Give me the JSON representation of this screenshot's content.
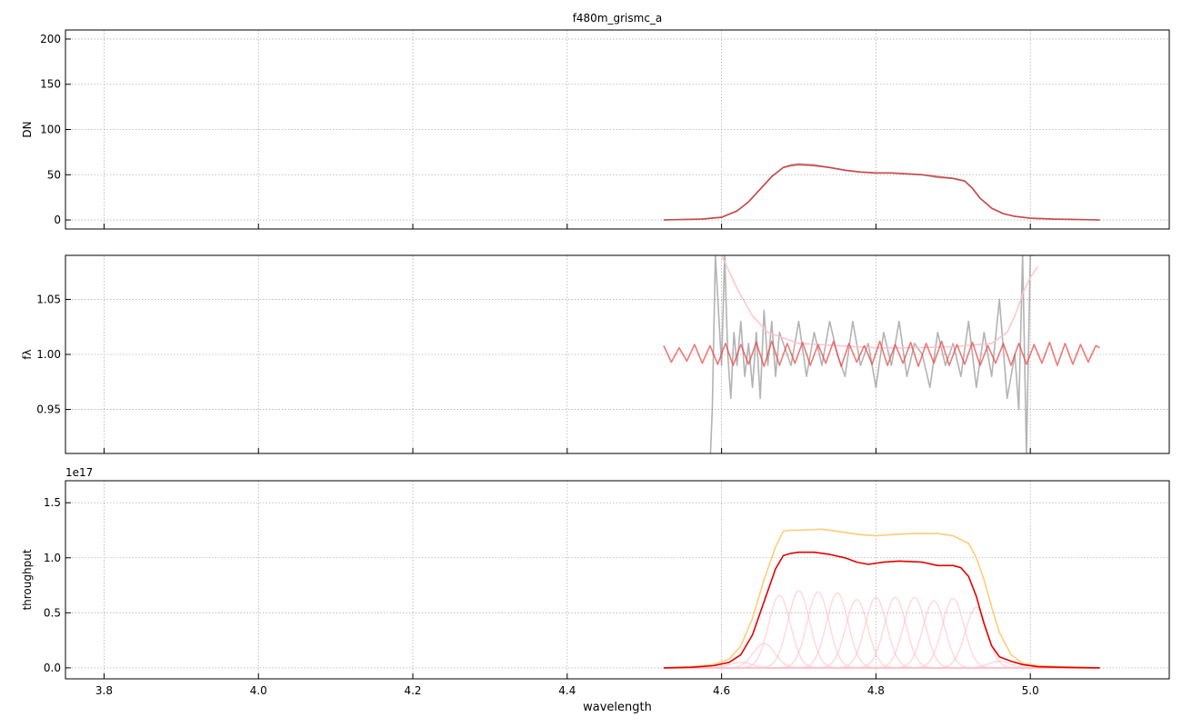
{
  "figure": {
    "title": "f480m_grismc_a",
    "xlabel": "wavelength"
  },
  "chart_data": [
    {
      "type": "line",
      "panel": "top",
      "title": "f480m_grismc_a",
      "xlabel": "",
      "ylabel": "DN",
      "xlim": [
        3.75,
        5.18
      ],
      "ylim": [
        -10,
        210
      ],
      "xticks": [
        3.8,
        4.0,
        4.2,
        4.4,
        4.6,
        4.8,
        5.0
      ],
      "xtick_labels": [
        "",
        "",
        "",
        "",
        "",
        "",
        ""
      ],
      "yticks": [
        0,
        50,
        100,
        150,
        200
      ],
      "ytick_labels": [
        "0",
        "50",
        "100",
        "150",
        "200"
      ],
      "grid": true,
      "series": [
        {
          "color": "#808080",
          "opacity": 0.65,
          "x": [
            4.525,
            4.55,
            4.575,
            4.6,
            4.62,
            4.635,
            4.65,
            4.665,
            4.68,
            4.69,
            4.7,
            4.72,
            4.74,
            4.76,
            4.78,
            4.8,
            4.82,
            4.84,
            4.86,
            4.88,
            4.9,
            4.915,
            4.925,
            4.935,
            4.95,
            4.965,
            4.98,
            5.0,
            5.03,
            5.06,
            5.09
          ],
          "y": [
            0,
            0.5,
            1,
            3,
            10,
            20,
            34,
            48,
            58,
            61,
            62,
            61,
            58,
            55,
            53,
            52,
            52,
            51,
            50,
            47,
            46,
            43,
            35,
            24,
            13,
            7,
            4,
            2,
            1,
            0.5,
            0
          ]
        },
        {
          "color": "#d62728",
          "opacity": 0.75,
          "x": [
            4.525,
            4.55,
            4.575,
            4.6,
            4.62,
            4.635,
            4.65,
            4.665,
            4.68,
            4.69,
            4.7,
            4.72,
            4.74,
            4.76,
            4.78,
            4.8,
            4.82,
            4.84,
            4.86,
            4.88,
            4.9,
            4.915,
            4.925,
            4.935,
            4.95,
            4.965,
            4.98,
            5.0,
            5.03,
            5.06,
            5.09
          ],
          "y": [
            0,
            0.5,
            1,
            3,
            10,
            20,
            34,
            48,
            58,
            60,
            61,
            60,
            58,
            55,
            53,
            52,
            52,
            51,
            50,
            48,
            46,
            43,
            35,
            24,
            13,
            7,
            4,
            2,
            1,
            0.5,
            0
          ]
        }
      ]
    },
    {
      "type": "line",
      "panel": "middle",
      "xlabel": "",
      "ylabel": "fλ",
      "xlim": [
        3.75,
        5.18
      ],
      "ylim": [
        0.91,
        1.09
      ],
      "xticks": [
        3.8,
        4.0,
        4.2,
        4.4,
        4.6,
        4.8,
        5.0
      ],
      "xtick_labels": [
        "",
        "",
        "",
        "",
        "",
        "",
        ""
      ],
      "yticks": [
        0.95,
        1.0,
        1.05
      ],
      "ytick_labels": [
        "0.95",
        "1.00",
        "1.05"
      ],
      "grid": true,
      "series": [
        {
          "color": "#808080",
          "opacity": 0.6,
          "x": [
            4.585,
            4.588,
            4.592,
            4.596,
            4.6,
            4.604,
            4.608,
            4.612,
            4.616,
            4.62,
            4.625,
            4.63,
            4.635,
            4.64,
            4.645,
            4.65,
            4.655,
            4.66,
            4.665,
            4.67,
            4.675,
            4.68,
            4.69,
            4.7,
            4.71,
            4.72,
            4.73,
            4.74,
            4.75,
            4.76,
            4.77,
            4.78,
            4.79,
            4.8,
            4.81,
            4.82,
            4.83,
            4.84,
            4.85,
            4.86,
            4.87,
            4.88,
            4.89,
            4.9,
            4.91,
            4.92,
            4.93,
            4.94,
            4.95,
            4.96,
            4.97,
            4.98,
            4.985,
            4.99,
            4.995,
            5.0,
            5.005
          ],
          "y": [
            0.9,
            0.95,
            1.09,
            1.04,
            0.99,
            1.09,
            1.0,
            0.96,
            1.02,
            0.99,
            1.03,
            0.98,
            1.01,
            0.97,
            1.02,
            0.96,
            1.04,
            0.99,
            1.03,
            0.98,
            1.02,
            1.01,
            0.99,
            1.03,
            0.98,
            1.02,
            0.99,
            1.03,
            1.0,
            0.98,
            1.03,
            0.99,
            1.01,
            0.97,
            1.02,
            0.99,
            1.03,
            0.98,
            1.01,
            1.0,
            0.97,
            1.02,
            0.99,
            1.01,
            0.98,
            1.03,
            0.97,
            1.02,
            0.98,
            1.05,
            0.96,
            1.0,
            0.95,
            1.09,
            0.91,
            1.09,
            1.09
          ]
        },
        {
          "color": "#ffc0cb",
          "opacity": 0.9,
          "x": [
            4.6,
            4.61,
            4.62,
            4.64,
            4.66,
            4.7,
            4.75,
            4.8,
            4.85,
            4.9,
            4.95,
            4.97,
            4.98,
            4.99,
            5.0,
            5.01
          ],
          "y": [
            1.09,
            1.075,
            1.06,
            1.035,
            1.02,
            1.01,
            1.008,
            1.006,
            1.006,
            1.007,
            1.01,
            1.02,
            1.035,
            1.055,
            1.07,
            1.08
          ]
        },
        {
          "color": "#e8403f",
          "opacity": 0.7,
          "x": [
            4.525,
            4.535,
            4.545,
            4.555,
            4.565,
            4.575,
            4.585,
            4.595,
            4.605,
            4.615,
            4.625,
            4.635,
            4.645,
            4.655,
            4.665,
            4.675,
            4.685,
            4.695,
            4.705,
            4.715,
            4.725,
            4.735,
            4.745,
            4.755,
            4.765,
            4.775,
            4.785,
            4.795,
            4.805,
            4.815,
            4.825,
            4.835,
            4.845,
            4.855,
            4.865,
            4.875,
            4.885,
            4.895,
            4.905,
            4.915,
            4.925,
            4.935,
            4.945,
            4.955,
            4.965,
            4.975,
            4.985,
            4.995,
            5.005,
            5.015,
            5.025,
            5.035,
            5.045,
            5.055,
            5.065,
            5.075,
            5.085,
            5.09
          ],
          "y": [
            1.008,
            0.993,
            1.006,
            0.994,
            1.009,
            0.992,
            1.008,
            0.991,
            1.01,
            0.99,
            1.009,
            0.991,
            1.011,
            0.989,
            1.012,
            0.99,
            1.01,
            0.992,
            1.011,
            0.99,
            1.009,
            0.992,
            1.012,
            0.989,
            1.01,
            0.993,
            1.008,
            0.991,
            1.012,
            0.99,
            1.009,
            0.992,
            1.011,
            0.989,
            1.01,
            0.992,
            1.012,
            0.99,
            1.009,
            0.991,
            1.011,
            0.99,
            1.008,
            0.992,
            1.01,
            0.99,
            1.01,
            0.991,
            1.009,
            0.992,
            1.011,
            0.99,
            1.01,
            0.991,
            1.009,
            0.993,
            1.008,
            1.006
          ]
        }
      ]
    },
    {
      "type": "line",
      "panel": "bottom",
      "xlabel": "wavelength",
      "ylabel": "throughput",
      "offset_label": "1e17",
      "xlim": [
        3.75,
        5.18
      ],
      "ylim": [
        -0.1,
        1.7
      ],
      "xticks": [
        3.8,
        4.0,
        4.2,
        4.4,
        4.6,
        4.8,
        5.0
      ],
      "xtick_labels": [
        "3.8",
        "4.0",
        "4.2",
        "4.4",
        "4.6",
        "4.8",
        "5.0"
      ],
      "yticks": [
        0.0,
        0.5,
        1.0,
        1.5
      ],
      "ytick_labels": [
        "0.0",
        "0.5",
        "1.0",
        "1.5"
      ],
      "grid": true,
      "series": [
        {
          "color": "#fdcc7a",
          "opacity": 1,
          "x": [
            4.525,
            4.56,
            4.59,
            4.61,
            4.625,
            4.64,
            4.655,
            4.67,
            4.68,
            4.69,
            4.7,
            4.73,
            4.76,
            4.78,
            4.8,
            4.82,
            4.85,
            4.88,
            4.9,
            4.92,
            4.93,
            4.94,
            4.95,
            4.96,
            4.975,
            4.99,
            5.01,
            5.04,
            5.09
          ],
          "y": [
            0,
            0.01,
            0.03,
            0.08,
            0.2,
            0.45,
            0.8,
            1.1,
            1.24,
            1.25,
            1.25,
            1.26,
            1.23,
            1.21,
            1.2,
            1.21,
            1.22,
            1.22,
            1.2,
            1.13,
            1.0,
            0.8,
            0.55,
            0.32,
            0.12,
            0.04,
            0.02,
            0.01,
            0
          ]
        },
        {
          "color": "#e60000",
          "opacity": 1,
          "x": [
            4.525,
            4.56,
            4.59,
            4.61,
            4.625,
            4.64,
            4.655,
            4.67,
            4.68,
            4.69,
            4.7,
            4.72,
            4.74,
            4.76,
            4.775,
            4.79,
            4.81,
            4.83,
            4.86,
            4.88,
            4.9,
            4.91,
            4.92,
            4.93,
            4.94,
            4.95,
            4.96,
            4.975,
            4.99,
            5.01,
            5.04,
            5.09
          ],
          "y": [
            0,
            0.005,
            0.02,
            0.05,
            0.12,
            0.3,
            0.6,
            0.9,
            1.02,
            1.04,
            1.05,
            1.05,
            1.03,
            1.0,
            0.96,
            0.94,
            0.96,
            0.97,
            0.96,
            0.93,
            0.93,
            0.91,
            0.83,
            0.65,
            0.4,
            0.2,
            0.1,
            0.06,
            0.03,
            0.01,
            0.005,
            0
          ]
        }
      ],
      "component_series": {
        "color": "#ffc0cb",
        "opacity": 0.6,
        "note": "individual pink gaussian components",
        "centers": [
          4.625,
          4.655,
          4.675,
          4.7,
          4.725,
          4.75,
          4.775,
          4.8,
          4.825,
          4.85,
          4.875,
          4.9,
          4.93,
          4.96
        ],
        "amplitudes": [
          0.05,
          0.22,
          0.66,
          0.7,
          0.69,
          0.68,
          0.62,
          0.64,
          0.64,
          0.64,
          0.61,
          0.63,
          0.55,
          0.06
        ],
        "sigma": 0.014
      }
    }
  ]
}
